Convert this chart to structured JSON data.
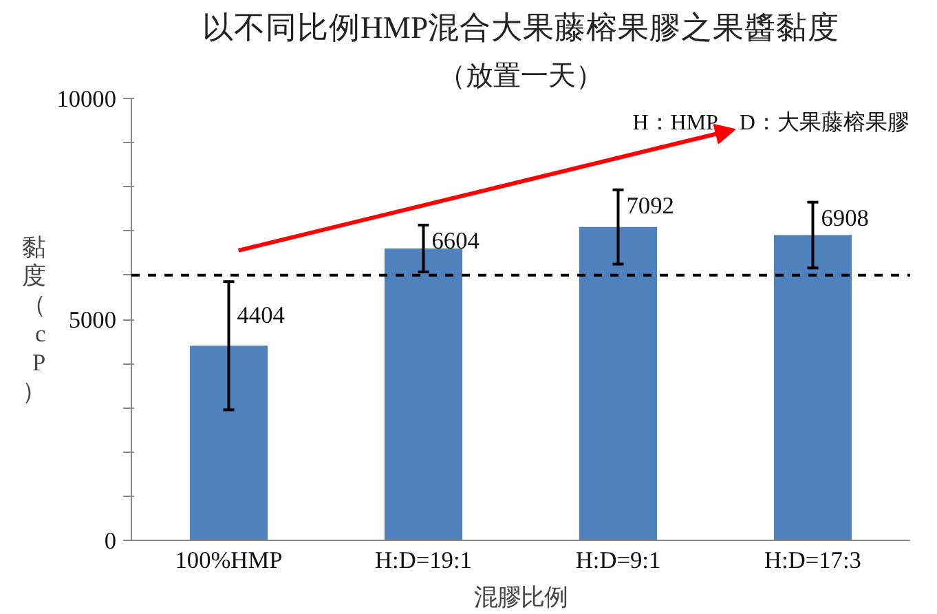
{
  "chart_data": {
    "type": "bar",
    "title": "以不同比例HMP混合大果藤榕果膠之果醬黏度",
    "subtitle": "（放置一天）",
    "xlabel": "混膠比例",
    "ylabel": "黏度（cP）",
    "categories": [
      "100%HMP",
      "H:D=19:1",
      "H:D=9:1",
      "H:D=17:3"
    ],
    "values": [
      4404,
      6604,
      7092,
      6908
    ],
    "color": "#4f81bd",
    "errors": [
      1450,
      530,
      840,
      745
    ],
    "data_labels": true,
    "ylim": [
      0,
      10000
    ],
    "yticks": [
      0,
      {
        "value": 1000,
        "label": null
      },
      {
        "value": 2000,
        "label": null
      },
      {
        "value": 3000,
        "label": null
      },
      {
        "value": 4000,
        "label": null
      },
      5000,
      {
        "value": 6000,
        "label": null
      },
      {
        "value": 7000,
        "label": null
      },
      {
        "value": 8000,
        "label": null
      },
      {
        "value": 9000,
        "label": null
      },
      10000
    ],
    "ref_lines": [
      {
        "axis": "y",
        "value": 6000,
        "label": null,
        "color": "#000000",
        "line_style": "dashed"
      }
    ],
    "annotations": [
      "H：HMP　D：大果藤榕果膠"
    ],
    "grid": false
  }
}
